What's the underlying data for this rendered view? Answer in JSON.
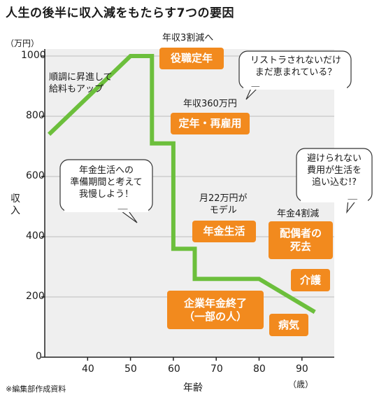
{
  "chart_data": {
    "type": "line",
    "title": "人生の後半に収入減をもたらす7つの要因",
    "unit_label": "（万円）",
    "ylabel": "収入",
    "xlabel": "年齢",
    "x_unit": "（歳）",
    "xlim": [
      30,
      95
    ],
    "ylim": [
      0,
      1000
    ],
    "x_ticks": [
      "40",
      "50",
      "60",
      "70",
      "80",
      "90"
    ],
    "y_ticks": [
      "0",
      "200",
      "400",
      "600",
      "800",
      "1000"
    ],
    "series": [
      {
        "values_x": [
          31,
          50,
          55,
          55,
          60,
          60,
          65,
          65,
          80,
          93
        ],
        "values_y": [
          740,
          1000,
          1000,
          710,
          710,
          360,
          360,
          260,
          260,
          150
        ],
        "color": "#6cbf3c"
      }
    ],
    "annotations": {
      "salary_up": "順調に昇進して\n給料もアップ",
      "cut_30": "年収3割減へ",
      "income_360": "年収360万円",
      "pension_model": "月22万円が\nモデル",
      "pension_cut": "年金4割減"
    },
    "factors": {
      "f1": "役職定年",
      "f2": "定年・再雇用",
      "f3": "年金生活",
      "f4": "企業年金終了\n（一部の人）",
      "f5": "配偶者の\n死去",
      "f6": "介護",
      "f7": "病気"
    },
    "bubbles": {
      "b1": "リストラされないだけ\nまだ恵まれている？",
      "b2": "年金生活への\n準備期間と考えて\n我慢しよう！",
      "b3": "避けられない\n費用が生活を\n追い込む!?"
    },
    "footnote": "※編集部作成資料",
    "colors": {
      "line": "#6cbf3c",
      "box": "#f28a1e",
      "plot_bg": "#efefef"
    }
  }
}
